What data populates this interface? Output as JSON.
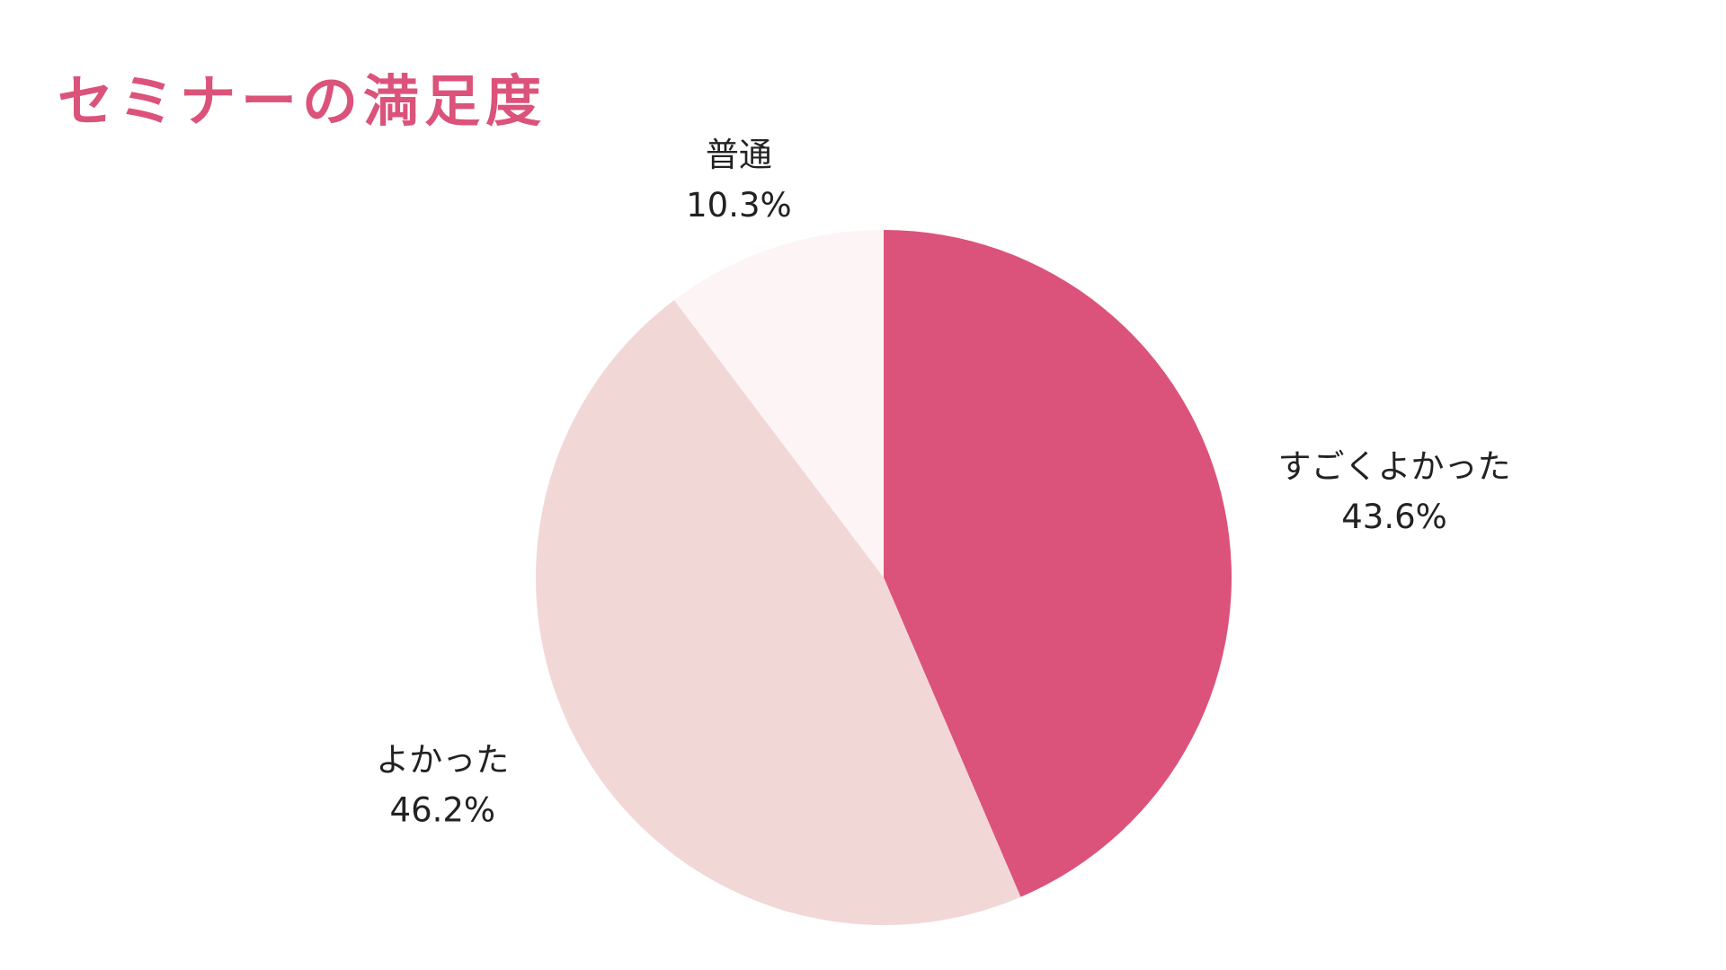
{
  "chart_data": {
    "type": "pie",
    "title": "セミナーの満足度",
    "categories": [
      "すごくよかった",
      "よかった",
      "普通"
    ],
    "values": [
      43.6,
      46.2,
      10.3
    ],
    "value_labels": [
      "43.6%",
      "46.2%",
      "10.3%"
    ],
    "colors": [
      "#db537a",
      "#f2d7d7",
      "#fcf4f5"
    ]
  }
}
